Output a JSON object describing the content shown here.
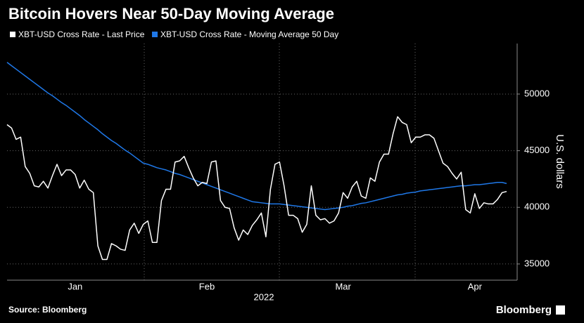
{
  "chart_data": {
    "type": "line",
    "title": "Bitcoin Hovers Near 50-Day Moving Average",
    "y_label": "U.S. dollars",
    "x_label": "2022",
    "source": "Source: Bloomberg",
    "brand": "Bloomberg",
    "categories": [
      null,
      null,
      null,
      null,
      null,
      null,
      null,
      null,
      null,
      null,
      null,
      null,
      null,
      null,
      null,
      "Jan",
      null,
      null,
      null,
      null,
      null,
      null,
      null,
      null,
      null,
      null,
      null,
      null,
      null,
      null,
      null,
      null,
      null,
      null,
      null,
      null,
      null,
      null,
      null,
      null,
      null,
      null,
      null,
      null,
      "Feb",
      null,
      null,
      null,
      null,
      null,
      null,
      null,
      null,
      null,
      null,
      null,
      null,
      null,
      null,
      null,
      null,
      null,
      null,
      null,
      null,
      null,
      null,
      null,
      null,
      null,
      null,
      null,
      null,
      null,
      "Mar",
      null,
      null,
      null,
      null,
      null,
      null,
      null,
      null,
      null,
      null,
      null,
      null,
      null,
      null,
      null,
      null,
      null,
      null,
      null,
      null,
      null,
      null,
      null,
      null,
      null,
      null,
      null,
      null,
      "Apr",
      null,
      null,
      null,
      null,
      null,
      null,
      null
    ],
    "series": [
      {
        "name": "XBT-USD Cross Rate - Last Price",
        "color": "#ffffff",
        "values": [
          47300,
          47000,
          46000,
          46200,
          43600,
          43000,
          41900,
          41800,
          42300,
          41700,
          42800,
          43800,
          42800,
          43300,
          43300,
          42900,
          41700,
          42400,
          41600,
          41300,
          36600,
          35400,
          35400,
          36800,
          36600,
          36300,
          36200,
          38000,
          38600,
          37700,
          38500,
          38800,
          36900,
          36900,
          40600,
          41600,
          41600,
          44000,
          44100,
          44500,
          43500,
          42600,
          41900,
          42200,
          42100,
          44000,
          44100,
          40600,
          40000,
          39900,
          38200,
          37100,
          38000,
          37600,
          38400,
          38900,
          39500,
          37400,
          41600,
          43800,
          44000,
          41900,
          39300,
          39300,
          39000,
          37800,
          38500,
          41900,
          39300,
          38900,
          39000,
          38600,
          38800,
          39500,
          41300,
          40800,
          41800,
          42300,
          41000,
          40800,
          42600,
          42300,
          44000,
          44700,
          44700,
          46500,
          48000,
          47500,
          47300,
          45700,
          46200,
          46200,
          46400,
          46400,
          46100,
          45000,
          43900,
          43600,
          43000,
          42500,
          43100,
          39800,
          39500,
          41200,
          39900,
          40400,
          40300,
          40300,
          40700,
          41300,
          41400
        ]
      },
      {
        "name": "XBT-USD Cross Rate - Moving Average 50 Day",
        "color": "#1f78e8",
        "values": [
          52800,
          52500,
          52200,
          51900,
          51600,
          51300,
          51000,
          50700,
          50400,
          50100,
          49850,
          49550,
          49250,
          49000,
          48700,
          48400,
          48100,
          47750,
          47450,
          47150,
          46850,
          46500,
          46200,
          45900,
          45650,
          45350,
          45050,
          44800,
          44500,
          44200,
          43900,
          43800,
          43650,
          43500,
          43400,
          43300,
          43150,
          43000,
          42900,
          42750,
          42600,
          42450,
          42300,
          42150,
          42000,
          41850,
          41700,
          41550,
          41400,
          41250,
          41100,
          40950,
          40800,
          40650,
          40500,
          40450,
          40400,
          40350,
          40300,
          40300,
          40300,
          40250,
          40200,
          40150,
          40100,
          40050,
          40000,
          39950,
          39900,
          39850,
          39800,
          39850,
          39900,
          39950,
          40000,
          40100,
          40150,
          40250,
          40350,
          40400,
          40500,
          40600,
          40700,
          40800,
          40900,
          41000,
          41100,
          41150,
          41250,
          41300,
          41350,
          41450,
          41500,
          41550,
          41600,
          41650,
          41700,
          41750,
          41800,
          41850,
          41900,
          41900,
          41950,
          42000,
          42000,
          42050,
          42100,
          42150,
          42200,
          42200,
          42100
        ]
      }
    ],
    "ylim": [
      33570,
      54460
    ],
    "yticks": [
      35000,
      40000,
      45000,
      50000
    ],
    "grid": true
  }
}
